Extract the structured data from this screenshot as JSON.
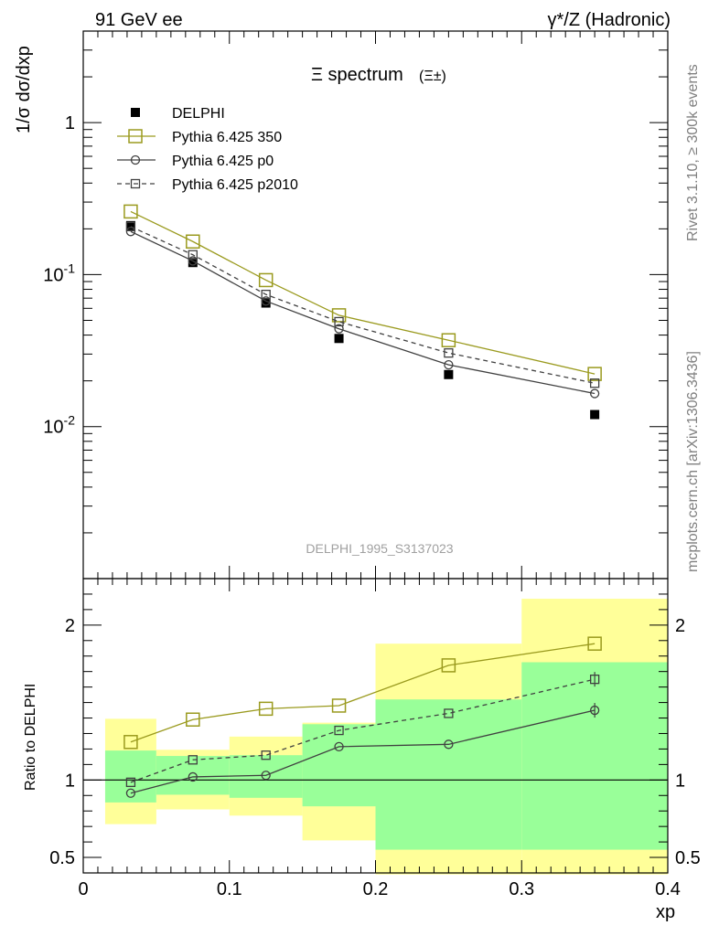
{
  "header": {
    "left": "91 GeV ee",
    "right": "γ*/Z (Hadronic)"
  },
  "side_text": {
    "rivet": "Rivet 3.1.10, ≥ 300k events",
    "mcplots": "mcplots.cern.ch [arXiv:1306.3436]"
  },
  "chart_data": [
    {
      "type": "scatter",
      "panel": "main",
      "title": "Ξ spectrum",
      "title_suffix": "(Ξ±)",
      "analysis_label": "DELPHI_1995_S3137023",
      "xlabel": "xp",
      "ylabel": "1/σ dσ/dxp",
      "xlim": [
        0,
        0.4
      ],
      "ylim": [
        0.001,
        4
      ],
      "yscale": "log",
      "y_ticks": [
        {
          "value": 0.01,
          "label": "10^-2"
        },
        {
          "value": 0.1,
          "label": "10^-1"
        },
        {
          "value": 1,
          "label": "1"
        }
      ],
      "x": [
        0.0325,
        0.075,
        0.125,
        0.175,
        0.25,
        0.35
      ],
      "x_bins": [
        [
          0.015,
          0.05
        ],
        [
          0.05,
          0.1
        ],
        [
          0.1,
          0.15
        ],
        [
          0.15,
          0.2
        ],
        [
          0.2,
          0.3
        ],
        [
          0.3,
          0.4
        ]
      ],
      "legend_position": "top-left",
      "series": [
        {
          "name": "DELPHI",
          "style": "filled-square",
          "color": "#000000",
          "values": [
            0.21,
            0.12,
            0.065,
            0.038,
            0.022,
            0.012
          ]
        },
        {
          "name": "Pythia 6.425 350",
          "style": "open-square-solid",
          "color": "#9a9a1e",
          "values": [
            0.26,
            0.165,
            0.092,
            0.054,
            0.037,
            0.0222
          ]
        },
        {
          "name": "Pythia 6.425 p0",
          "style": "open-circle-solid",
          "color": "#404040",
          "values": [
            0.192,
            0.123,
            0.067,
            0.044,
            0.0255,
            0.0165
          ]
        },
        {
          "name": "Pythia 6.425 p2010",
          "style": "open-square-dashed",
          "color": "#404040",
          "values": [
            0.207,
            0.135,
            0.074,
            0.049,
            0.0305,
            0.0193
          ]
        }
      ]
    },
    {
      "type": "scatter",
      "panel": "ratio",
      "xlabel": "xp",
      "ylabel": "Ratio to DELPHI",
      "xlim": [
        0,
        0.4
      ],
      "ylim": [
        0.4,
        2.3
      ],
      "x_ticks": [
        {
          "value": 0,
          "label": "0"
        },
        {
          "value": 0.1,
          "label": "0.1"
        },
        {
          "value": 0.2,
          "label": "0.2"
        },
        {
          "value": 0.3,
          "label": "0.3"
        },
        {
          "value": 0.4,
          "label": "0.4"
        }
      ],
      "y_ticks": [
        {
          "value": 0.5,
          "label": "0.5"
        },
        {
          "value": 1,
          "label": "1"
        },
        {
          "value": 2,
          "label": "2"
        }
      ],
      "x": [
        0.0325,
        0.075,
        0.125,
        0.175,
        0.25,
        0.35
      ],
      "x_bins": [
        [
          0.015,
          0.05
        ],
        [
          0.05,
          0.1
        ],
        [
          0.1,
          0.15
        ],
        [
          0.15,
          0.2
        ],
        [
          0.2,
          0.3
        ],
        [
          0.3,
          0.4
        ]
      ],
      "bands": {
        "yellow": [
          [
            0.715,
            1.395
          ],
          [
            0.81,
            1.195
          ],
          [
            0.77,
            1.28
          ],
          [
            0.61,
            1.37
          ],
          [
            0.39,
            1.88
          ],
          [
            0.39,
            2.17
          ]
        ],
        "green": [
          [
            0.855,
            1.19
          ],
          [
            0.905,
            1.155
          ],
          [
            0.885,
            1.16
          ],
          [
            0.83,
            1.36
          ],
          [
            0.55,
            1.52
          ],
          [
            0.55,
            1.76
          ]
        ]
      },
      "series": [
        {
          "name": "Pythia 6.425 350",
          "color": "#9a9a1e",
          "values": [
            1.245,
            1.39,
            1.46,
            1.48,
            1.74,
            1.88
          ]
        },
        {
          "name": "Pythia 6.425 p0",
          "color": "#404040",
          "values": [
            0.915,
            1.02,
            1.03,
            1.215,
            1.23,
            1.45
          ]
        },
        {
          "name": "Pythia 6.425 p2010",
          "color": "#404040",
          "values": [
            0.985,
            1.13,
            1.16,
            1.32,
            1.43,
            1.65
          ]
        }
      ]
    }
  ]
}
